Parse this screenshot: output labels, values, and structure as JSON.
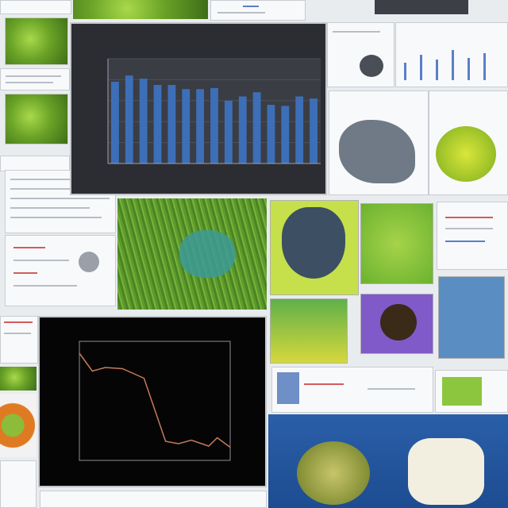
{
  "chart_data": [
    {
      "type": "bar",
      "title": "",
      "xlabel": "",
      "ylabel": "",
      "values": [
        7.8,
        8.4,
        8.1,
        7.5,
        7.5,
        7.1,
        7.1,
        7.2,
        6.0,
        6.4,
        6.8,
        5.6,
        5.5,
        6.4,
        6.2
      ],
      "ylim": [
        0,
        10
      ],
      "grid": true,
      "bar_color": "#3d6fb8"
    },
    {
      "type": "line",
      "title": "",
      "xlabel": "",
      "ylabel": "",
      "x": [
        0,
        0.3,
        0.6,
        1.0,
        1.5,
        2.0,
        2.3,
        2.6,
        3.0,
        3.2,
        3.5
      ],
      "values": [
        9.0,
        7.5,
        7.8,
        7.7,
        6.9,
        1.6,
        1.4,
        1.7,
        1.2,
        1.9,
        1.1
      ],
      "xlim": [
        0,
        3.5
      ],
      "ylim": [
        0,
        10
      ],
      "grid": false,
      "line_color": "#c87a5a"
    }
  ],
  "colors": {
    "background": "#e9ecef",
    "leaf_green": "#a9d94a",
    "grass_green": "#5e9a2b",
    "panel_dark": "#2b2d33",
    "panel_black": "#050505",
    "accent_blue": "#1d4c91"
  }
}
